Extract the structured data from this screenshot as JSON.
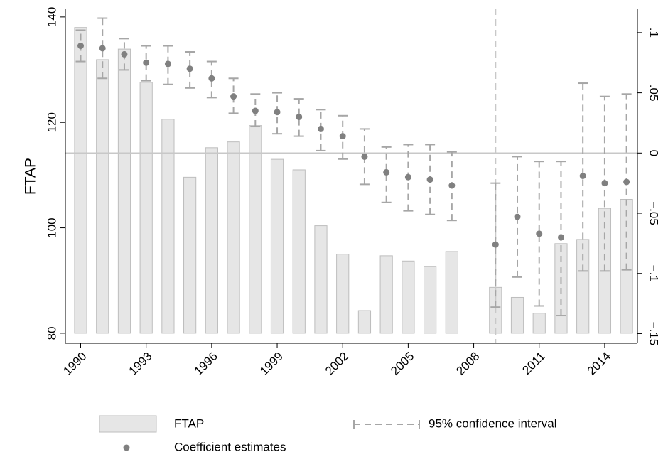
{
  "chart_data": {
    "type": "bar",
    "y_label": "FTAP",
    "x": [
      1990,
      1991,
      1992,
      1993,
      1994,
      1995,
      1996,
      1997,
      1998,
      1999,
      2000,
      2001,
      2002,
      2003,
      2004,
      2005,
      2006,
      2007,
      2008,
      2009,
      2010,
      2011,
      2012,
      2013,
      2014,
      2015
    ],
    "xlim": [
      1989.3,
      2015.5
    ],
    "xticks": [
      1990,
      1993,
      1996,
      1999,
      2002,
      2005,
      2008,
      2011,
      2014
    ],
    "ylim": [
      78.1,
      141.6
    ],
    "yticks": [
      80,
      100,
      120,
      140
    ],
    "y2lim": [
      -0.158,
      0.12
    ],
    "y2ticks": [
      {
        "value": -0.15,
        "label": "−.15"
      },
      {
        "value": -0.1,
        "label": "−.1"
      },
      {
        "value": -0.05,
        "label": "−.05"
      },
      {
        "value": 0,
        "label": "0"
      },
      {
        "value": 0.05,
        "label": ".05"
      },
      {
        "value": 0.1,
        "label": ".1"
      }
    ],
    "hline_y2": 0,
    "vline_x": 2009,
    "series": [
      {
        "name": "FTAP",
        "type": "bar",
        "color": "#e6e6e6",
        "values": [
          138.0,
          131.9,
          133.9,
          127.6,
          120.6,
          109.6,
          115.2,
          116.3,
          119.4,
          113.0,
          111.0,
          100.4,
          95.0,
          84.3,
          94.7,
          93.7,
          92.7,
          95.5,
          null,
          88.7,
          86.8,
          83.8,
          97.0,
          97.8,
          103.7,
          105.4
        ]
      },
      {
        "name": "Coefficient estimates",
        "type": "scatter",
        "axis": "y2",
        "color": "#808080",
        "values": [
          0.089,
          0.087,
          0.082,
          0.075,
          0.074,
          0.07,
          0.062,
          0.047,
          0.035,
          0.034,
          0.03,
          0.02,
          0.014,
          -0.003,
          -0.016,
          -0.02,
          -0.022,
          -0.027,
          null,
          -0.076,
          -0.053,
          -0.067,
          -0.07,
          -0.019,
          -0.025,
          -0.024
        ]
      }
    ],
    "error_bars": {
      "name": "95% confidence interval",
      "axis": "y2",
      "color": "#a6a6a6",
      "lower": [
        0.076,
        0.062,
        0.069,
        0.06,
        0.057,
        0.054,
        0.046,
        0.033,
        0.022,
        0.016,
        0.014,
        0.002,
        -0.005,
        -0.026,
        -0.041,
        -0.048,
        -0.051,
        -0.056,
        null,
        -0.128,
        -0.103,
        -0.127,
        -0.135,
        -0.098,
        -0.098,
        -0.097
      ],
      "upper": [
        0.102,
        0.112,
        0.095,
        0.089,
        0.089,
        0.084,
        0.076,
        0.062,
        0.049,
        0.05,
        0.045,
        0.036,
        0.031,
        0.02,
        0.005,
        0.007,
        0.007,
        0.001,
        null,
        -0.025,
        -0.003,
        -0.007,
        -0.007,
        0.058,
        0.047,
        0.049
      ]
    }
  }
}
